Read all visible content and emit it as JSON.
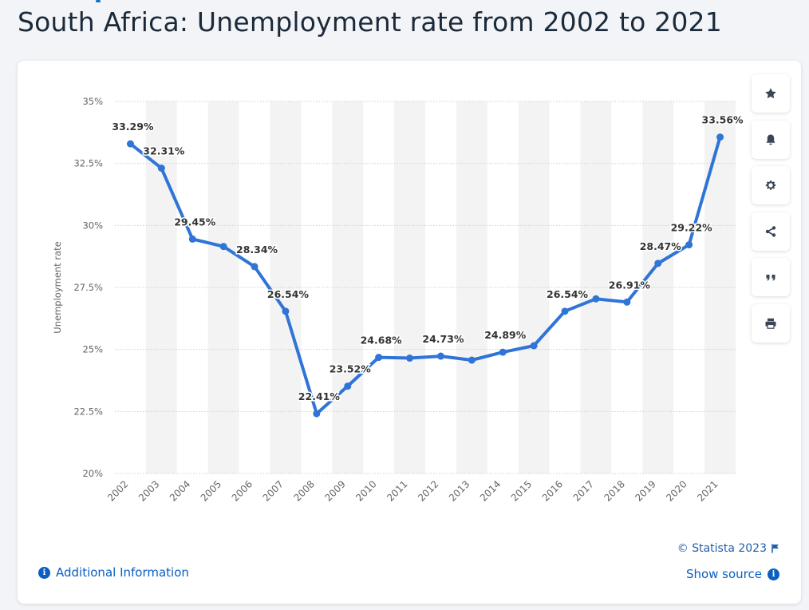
{
  "page": {
    "title": "South Africa: Unemployment rate from 2002 to 2021"
  },
  "sidebar": {
    "buttons": [
      {
        "name": "star-icon",
        "label": "Favorite"
      },
      {
        "name": "bell-icon",
        "label": "Notifications"
      },
      {
        "name": "gear-icon",
        "label": "Settings"
      },
      {
        "name": "share-icon",
        "label": "Share"
      },
      {
        "name": "quote-icon",
        "label": "Cite"
      },
      {
        "name": "print-icon",
        "label": "Print"
      }
    ]
  },
  "footer": {
    "credit": "© Statista 2023",
    "additional_info": "Additional Information",
    "show_source": "Show source",
    "info_glyph": "i"
  },
  "colors": {
    "line": "#2f74d6",
    "band": "#f3f3f3",
    "grid": "#cfcfcf",
    "label": "#333333",
    "tick": "#666666"
  },
  "chart_data": {
    "type": "line",
    "title": "South Africa: Unemployment rate from 2002 to 2021",
    "xlabel": "",
    "ylabel": "Unemployment rate",
    "categories": [
      "2002",
      "2003",
      "2004",
      "2005",
      "2006",
      "2007",
      "2008",
      "2009",
      "2010",
      "2011",
      "2012",
      "2013",
      "2014",
      "2015",
      "2016",
      "2017",
      "2018",
      "2019",
      "2020",
      "2021"
    ],
    "values": [
      33.29,
      32.31,
      29.45,
      29.15,
      28.34,
      26.54,
      22.41,
      23.52,
      24.68,
      24.65,
      24.73,
      24.57,
      24.89,
      25.15,
      26.54,
      27.04,
      26.91,
      28.47,
      29.22,
      33.56
    ],
    "point_labels": [
      "33.29%",
      "32.31%",
      "29.45%",
      "",
      "28.34%",
      "26.54%",
      "22.41%",
      "23.52%",
      "24.68%",
      "",
      "24.73%",
      "",
      "24.89%",
      "",
      "26.54%",
      "",
      "26.91%",
      "28.47%",
      "29.22%",
      "33.56%"
    ],
    "ylim": [
      20,
      35
    ],
    "yticks": [
      20,
      22.5,
      25,
      27.5,
      30,
      32.5,
      35
    ],
    "ytick_labels": [
      "20%",
      "22.5%",
      "25%",
      "27.5%",
      "30%",
      "32.5%",
      "35%"
    ],
    "grid": true,
    "legend": "none"
  }
}
